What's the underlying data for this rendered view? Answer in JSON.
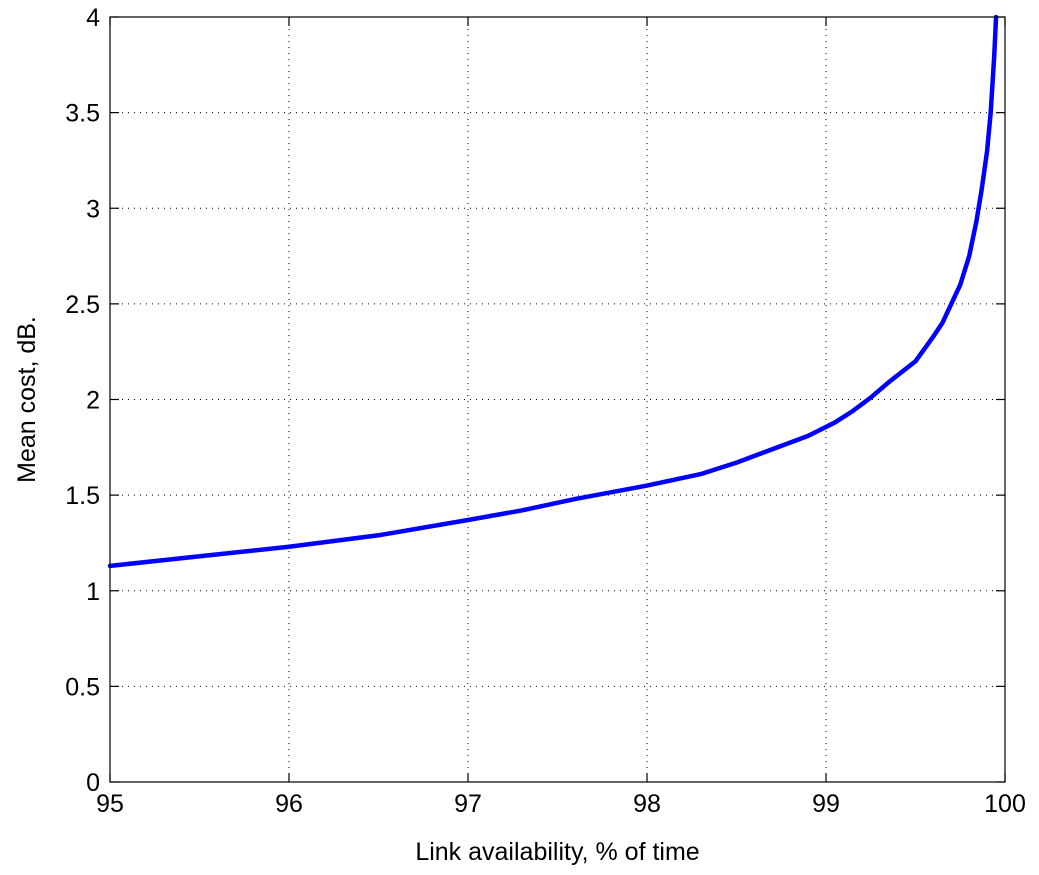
{
  "chart_data": {
    "type": "line",
    "title": "",
    "xlabel": "Link availability, % of time",
    "ylabel": "Mean cost, dB.",
    "xlim": [
      95,
      100
    ],
    "ylim": [
      0,
      4
    ],
    "xticks": [
      95,
      96,
      97,
      98,
      99,
      100
    ],
    "yticks": [
      0,
      0.5,
      1,
      1.5,
      2,
      2.5,
      3,
      3.5,
      4
    ],
    "xtick_labels": [
      "95",
      "96",
      "97",
      "98",
      "99",
      "100"
    ],
    "ytick_labels": [
      "0",
      "0.5",
      "1",
      "1.5",
      "2",
      "2.5",
      "3",
      "3.5",
      "4"
    ],
    "grid": true,
    "series": [
      {
        "color": "#0000ff",
        "x": [
          95.0,
          95.3,
          95.6,
          96.0,
          96.5,
          97.0,
          97.3,
          97.6,
          98.0,
          98.3,
          98.5,
          98.7,
          98.9,
          99.05,
          99.15,
          99.25,
          99.35,
          99.5,
          99.6,
          99.65,
          99.7,
          99.75,
          99.8,
          99.84,
          99.87,
          99.9,
          99.92,
          99.93,
          99.94,
          99.95
        ],
        "y": [
          1.13,
          1.16,
          1.19,
          1.23,
          1.29,
          1.37,
          1.42,
          1.48,
          1.55,
          1.61,
          1.67,
          1.74,
          1.81,
          1.88,
          1.94,
          2.01,
          2.09,
          2.2,
          2.33,
          2.4,
          2.5,
          2.6,
          2.75,
          2.93,
          3.1,
          3.3,
          3.5,
          3.65,
          3.8,
          4.0
        ]
      }
    ]
  }
}
